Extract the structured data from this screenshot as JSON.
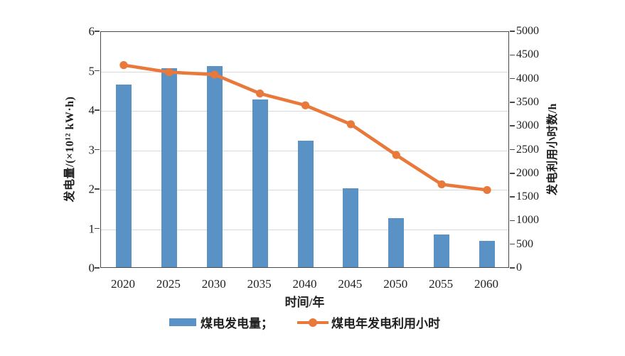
{
  "figure": {
    "left_axis": {
      "title": "发电量/(×10¹² kW·h)",
      "tick_labels": [
        "0",
        "1",
        "2",
        "3",
        "4",
        "5",
        "6"
      ],
      "min": 0,
      "max": 6
    },
    "right_axis": {
      "title": "发电利用小时数/h",
      "tick_labels": [
        "0",
        "500",
        "1000",
        "1500",
        "2000",
        "2500",
        "3000",
        "3500",
        "4000",
        "4500",
        "5000"
      ],
      "min": 0,
      "max": 5000
    },
    "x_axis": {
      "title": "时间/年"
    },
    "legend": {
      "bar_label": "煤电发电量；",
      "line_label": "煤电年发电利用小时"
    }
  },
  "chart_data": {
    "type": "bar+line",
    "categories": [
      "2020",
      "2025",
      "2030",
      "2035",
      "2040",
      "2045",
      "2050",
      "2055",
      "2060"
    ],
    "series": [
      {
        "name": "煤电发电量",
        "type": "bar",
        "axis": "left",
        "unit": "×10¹² kW·h",
        "values": [
          4.63,
          5.05,
          5.1,
          4.25,
          3.2,
          2.0,
          1.25,
          0.83,
          0.67
        ]
      },
      {
        "name": "煤电年发电利用小时",
        "type": "line",
        "axis": "right",
        "unit": "h",
        "values": [
          4300,
          4150,
          4100,
          3700,
          3450,
          3050,
          2400,
          1780,
          1660
        ]
      }
    ],
    "title": "",
    "xlabel": "时间/年",
    "ylabel_left": "发电量/(×10¹² kW·h)",
    "ylabel_right": "发电利用小时数/h",
    "ylim_left": [
      0,
      6
    ],
    "ylim_right": [
      0,
      5000
    ],
    "grid": "horizontal-at-left-integers",
    "legend_position": "bottom-center",
    "colors": {
      "bar": "#5b92c6",
      "line": "#e8793b"
    }
  }
}
